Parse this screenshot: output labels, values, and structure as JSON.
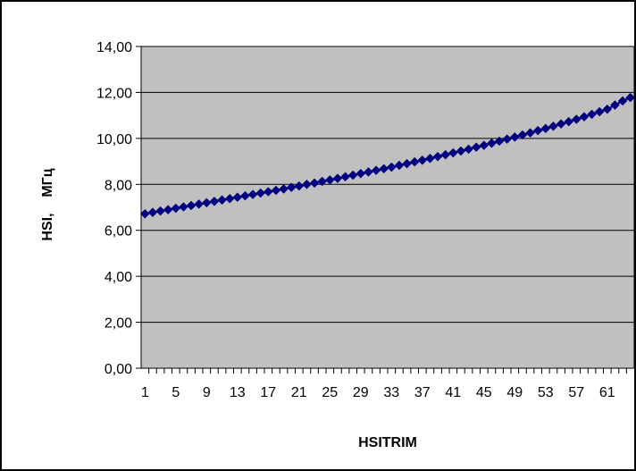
{
  "chart_data": {
    "type": "line",
    "title": "",
    "xlabel": "HSITRIM",
    "ylabel": "HSI,    МГц",
    "x_tick_labels": [
      "1",
      "5",
      "9",
      "13",
      "17",
      "21",
      "25",
      "29",
      "33",
      "37",
      "41",
      "45",
      "49",
      "53",
      "57",
      "61"
    ],
    "y_tick_labels": [
      "0,00",
      "2,00",
      "4,00",
      "6,00",
      "8,00",
      "10,00",
      "12,00",
      "14,00"
    ],
    "ylim": [
      0,
      14
    ],
    "x_range": [
      1,
      64
    ],
    "grid": "horizontal",
    "legend": "none",
    "colors": {
      "series": "#000080",
      "plot_background": "#c0c0c0",
      "gridline": "#000000",
      "frame": "#000000"
    },
    "marker": "diamond",
    "series": [
      {
        "x": [
          1,
          2,
          3,
          4,
          5,
          6,
          7,
          8,
          9,
          10,
          11,
          12,
          13,
          14,
          15,
          16,
          17,
          18,
          19,
          20,
          21,
          22,
          23,
          24,
          25,
          26,
          27,
          28,
          29,
          30,
          31,
          32,
          33,
          34,
          35,
          36,
          37,
          38,
          39,
          40,
          41,
          42,
          43,
          44,
          45,
          46,
          47,
          48,
          49,
          50,
          51,
          52,
          53,
          54,
          55,
          56,
          57,
          58,
          59,
          60,
          61,
          62,
          63,
          64
        ],
        "values": [
          6.72,
          6.78,
          6.84,
          6.9,
          6.96,
          7.02,
          7.08,
          7.14,
          7.2,
          7.26,
          7.32,
          7.38,
          7.44,
          7.5,
          7.56,
          7.62,
          7.68,
          7.74,
          7.8,
          7.87,
          7.93,
          8.0,
          8.06,
          8.13,
          8.19,
          8.26,
          8.33,
          8.4,
          8.47,
          8.54,
          8.61,
          8.68,
          8.75,
          8.83,
          8.9,
          8.98,
          9.05,
          9.13,
          9.21,
          9.29,
          9.37,
          9.45,
          9.53,
          9.62,
          9.7,
          9.79,
          9.88,
          9.97,
          10.06,
          10.15,
          10.24,
          10.34,
          10.43,
          10.53,
          10.63,
          10.73,
          10.83,
          10.94,
          11.05,
          11.16,
          11.27,
          11.45,
          11.63,
          11.78
        ]
      }
    ]
  }
}
